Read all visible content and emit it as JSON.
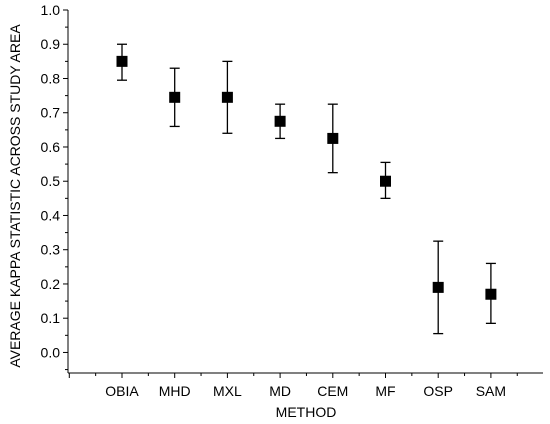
{
  "chart_data": {
    "type": "scatter",
    "xlabel": "METHOD",
    "ylabel": "AVERAGE KAPPA STATISTIC ACROSS STUDY AREA",
    "categories": [
      "OBIA",
      "MHD",
      "MXL",
      "MD",
      "CEM",
      "MF",
      "OSP",
      "SAM"
    ],
    "values": [
      0.85,
      0.745,
      0.745,
      0.675,
      0.625,
      0.5,
      0.19,
      0.17
    ],
    "error_low": [
      0.795,
      0.66,
      0.64,
      0.625,
      0.525,
      0.45,
      0.055,
      0.085
    ],
    "error_high": [
      0.9,
      0.83,
      0.85,
      0.725,
      0.725,
      0.555,
      0.325,
      0.26
    ],
    "ylim": [
      -0.06,
      1.0
    ],
    "yticks": [
      "0.0",
      "0.1",
      "0.2",
      "0.3",
      "0.4",
      "0.5",
      "0.6",
      "0.7",
      "0.8",
      "0.9",
      "1.0"
    ],
    "grid": false,
    "colors": {
      "marker": "#000000",
      "axis": "#000000"
    }
  }
}
